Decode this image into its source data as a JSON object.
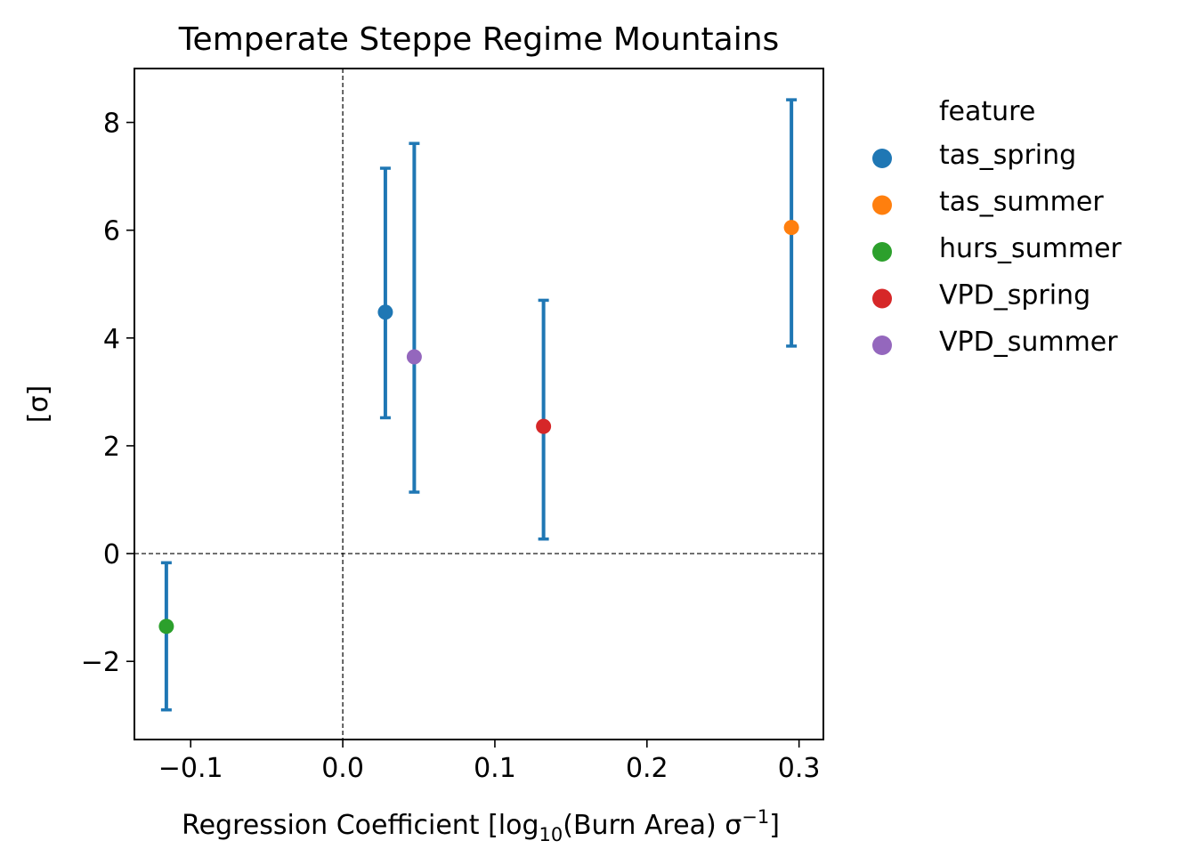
{
  "chart_data": {
    "type": "scatter",
    "title": "Temperate Steppe Regime Mountains",
    "xlabel": {
      "main": "Regression Coefficient [log",
      "sub": "10",
      "mid": "(Burn Area) σ",
      "sup": "−1",
      "end": "]"
    },
    "ylabel": "[σ]",
    "xlim": [
      -0.137,
      0.316
    ],
    "ylim": [
      -3.45,
      9.0
    ],
    "xticks": [
      -0.1,
      0.0,
      0.1,
      0.2,
      0.3
    ],
    "xtick_labels": [
      "−0.1",
      "0.0",
      "0.1",
      "0.2",
      "0.3"
    ],
    "yticks": [
      -2,
      0,
      2,
      4,
      6,
      8
    ],
    "ytick_labels": [
      "−2",
      "0",
      "2",
      "4",
      "6",
      "8"
    ],
    "reference_lines": {
      "x": 0,
      "y": 0
    },
    "errorbar_color": "#1f77b4",
    "legend": {
      "title": "feature",
      "placement": "outside-right"
    },
    "series": [
      {
        "name": "tas_spring",
        "color": "#1f77b4",
        "x": 0.028,
        "y": 4.48,
        "y_low": 2.52,
        "y_high": 7.15
      },
      {
        "name": "tas_summer",
        "color": "#ff7f0e",
        "x": 0.295,
        "y": 6.05,
        "y_low": 3.85,
        "y_high": 8.42
      },
      {
        "name": "hurs_summer",
        "color": "#2ca02c",
        "x": -0.116,
        "y": -1.35,
        "y_low": -2.9,
        "y_high": -0.17
      },
      {
        "name": "VPD_spring",
        "color": "#d62728",
        "x": 0.132,
        "y": 2.36,
        "y_low": 0.27,
        "y_high": 4.7
      },
      {
        "name": "VPD_summer",
        "color": "#9467bd",
        "x": 0.047,
        "y": 3.65,
        "y_low": 1.14,
        "y_high": 7.61
      }
    ]
  }
}
